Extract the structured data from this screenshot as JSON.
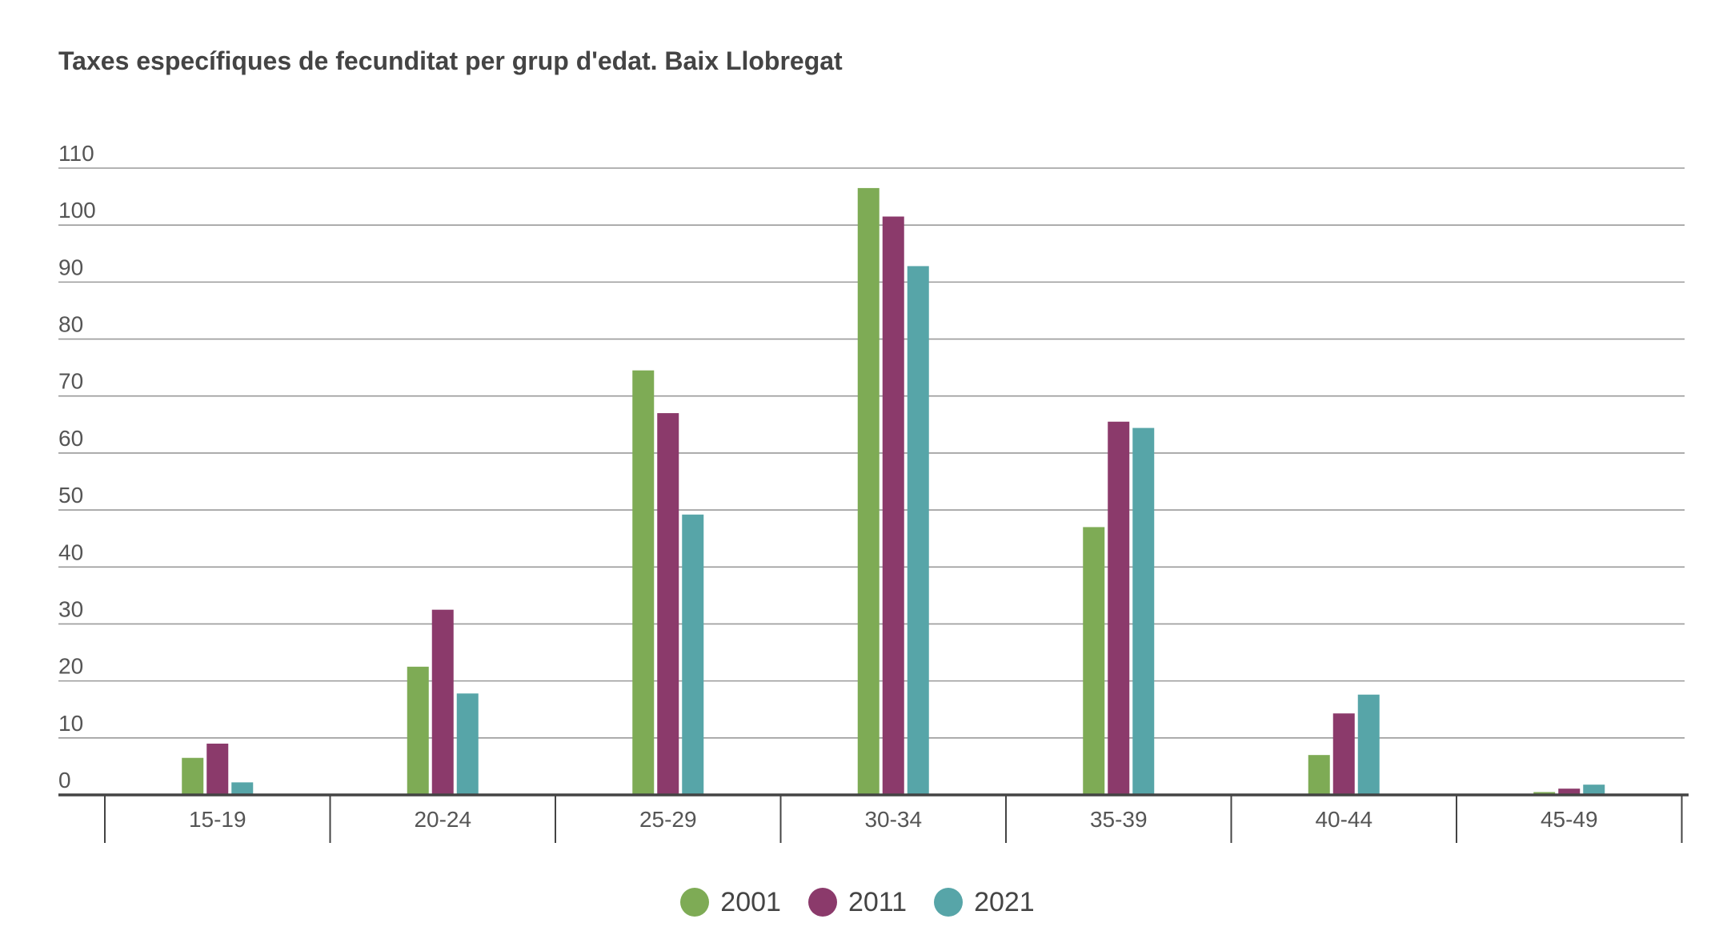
{
  "colors": {
    "s2001": "#7eab55",
    "s2011": "#8b3a6b",
    "s2021": "#57a5a8",
    "grid": "#9a9a9a",
    "axis": "#444444"
  },
  "chart_data": {
    "type": "bar",
    "title": "Taxes específiques de fecunditat per grup d'edat. Baix Llobregat",
    "xlabel": "",
    "ylabel": "",
    "ylim": [
      0,
      110
    ],
    "yticks": [
      "0",
      "10",
      "20",
      "30",
      "40",
      "50",
      "60",
      "70",
      "80",
      "90",
      "100",
      "110"
    ],
    "grid": true,
    "legend_position": "bottom-center",
    "categories": [
      "15-19",
      "20-24",
      "25-29",
      "30-34",
      "35-39",
      "40-44",
      "45-49"
    ],
    "series": [
      {
        "name": "2001",
        "color": "#7eab55",
        "values": [
          6.5,
          22.5,
          74.5,
          106.5,
          47.0,
          7.0,
          0.5
        ]
      },
      {
        "name": "2011",
        "color": "#8b3a6b",
        "values": [
          9.0,
          32.5,
          67.0,
          101.5,
          65.5,
          14.3,
          1.1
        ]
      },
      {
        "name": "2021",
        "color": "#57a5a8",
        "values": [
          2.2,
          17.8,
          49.2,
          92.8,
          64.4,
          17.6,
          1.8
        ]
      }
    ]
  }
}
